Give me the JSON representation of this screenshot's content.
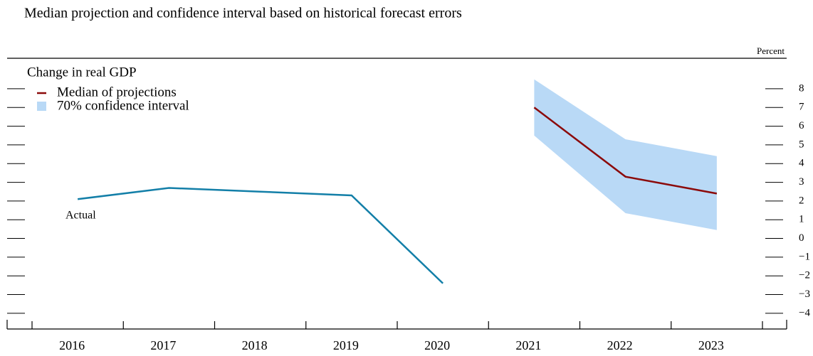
{
  "chart_data": {
    "type": "line",
    "title": "Median projection and confidence interval based on historical forecast errors",
    "panel_title": "Change in real GDP",
    "y_axis_label": "Percent",
    "annotation": "Actual",
    "categories": [
      "2016",
      "2017",
      "2018",
      "2019",
      "2020",
      "2021",
      "2022",
      "2023"
    ],
    "series": [
      {
        "name": "Actual",
        "color": "#137fa8",
        "values": [
          2.1,
          2.7,
          2.5,
          2.3,
          -2.4,
          null,
          null,
          null
        ]
      },
      {
        "name": "Median of projections",
        "color": "#8b0a0a",
        "values": [
          null,
          null,
          null,
          null,
          null,
          7.0,
          3.3,
          2.4
        ]
      }
    ],
    "band": {
      "name": "70% confidence interval",
      "color": "#b9d9f6",
      "lower": [
        null,
        null,
        null,
        null,
        null,
        5.5,
        1.35,
        0.45
      ],
      "upper": [
        null,
        null,
        null,
        null,
        null,
        8.5,
        5.3,
        4.4
      ]
    },
    "ylim": [
      -4.84,
      9.63
    ],
    "yticks": [
      {
        "value": -4,
        "label": "−4"
      },
      {
        "value": -3,
        "label": "−3"
      },
      {
        "value": -2,
        "label": "−2"
      },
      {
        "value": -1,
        "label": "−1"
      },
      0,
      1,
      2,
      3,
      4,
      5,
      6,
      7,
      8
    ]
  }
}
